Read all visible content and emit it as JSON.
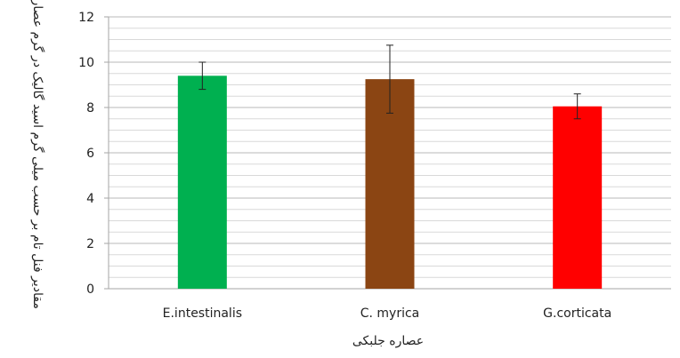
{
  "chart_data": {
    "type": "bar",
    "categories": [
      "E.intestinalis",
      "C. myrica",
      "G.corticata"
    ],
    "values": [
      9.4,
      9.25,
      8.05
    ],
    "error": [
      0.6,
      1.5,
      0.55
    ],
    "colors": [
      "#00b050",
      "#8b4513",
      "#ff0000"
    ],
    "xlabel": "عصاره جلبکی",
    "ylabel": "مقادیر فنل تام بر حسب میلی گرم اسید گالیک در گرم عصاره",
    "ylim": [
      0,
      12
    ],
    "yticks": [
      0,
      2,
      4,
      6,
      8,
      10,
      12
    ],
    "grid": true,
    "legend": "none"
  }
}
